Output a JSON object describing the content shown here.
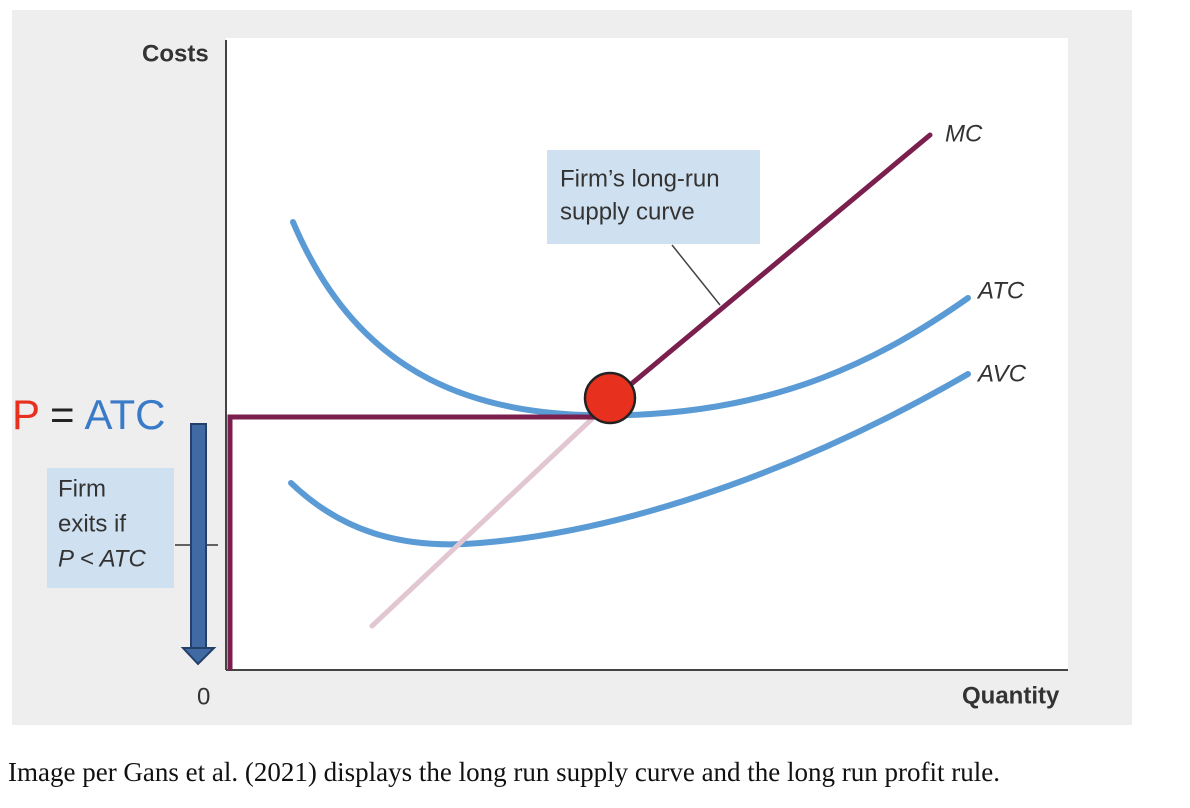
{
  "axes": {
    "y_label": "Costs",
    "x_label": "Quantity",
    "origin": "0"
  },
  "curves": [
    {
      "label": "MC"
    },
    {
      "label": "ATC"
    },
    {
      "label": "AVC"
    }
  ],
  "callout": {
    "lines": [
      "Firm’s long-run",
      "supply curve"
    ]
  },
  "price_label": {
    "p": "P",
    "equals": "=",
    "atc": "ATC"
  },
  "exit_note": {
    "lines": [
      "Firm",
      "exits if",
      "P < ATC"
    ]
  },
  "caption": "Image per Gans et al. (2021) displays the long run supply curve and the long run profit rule."
}
